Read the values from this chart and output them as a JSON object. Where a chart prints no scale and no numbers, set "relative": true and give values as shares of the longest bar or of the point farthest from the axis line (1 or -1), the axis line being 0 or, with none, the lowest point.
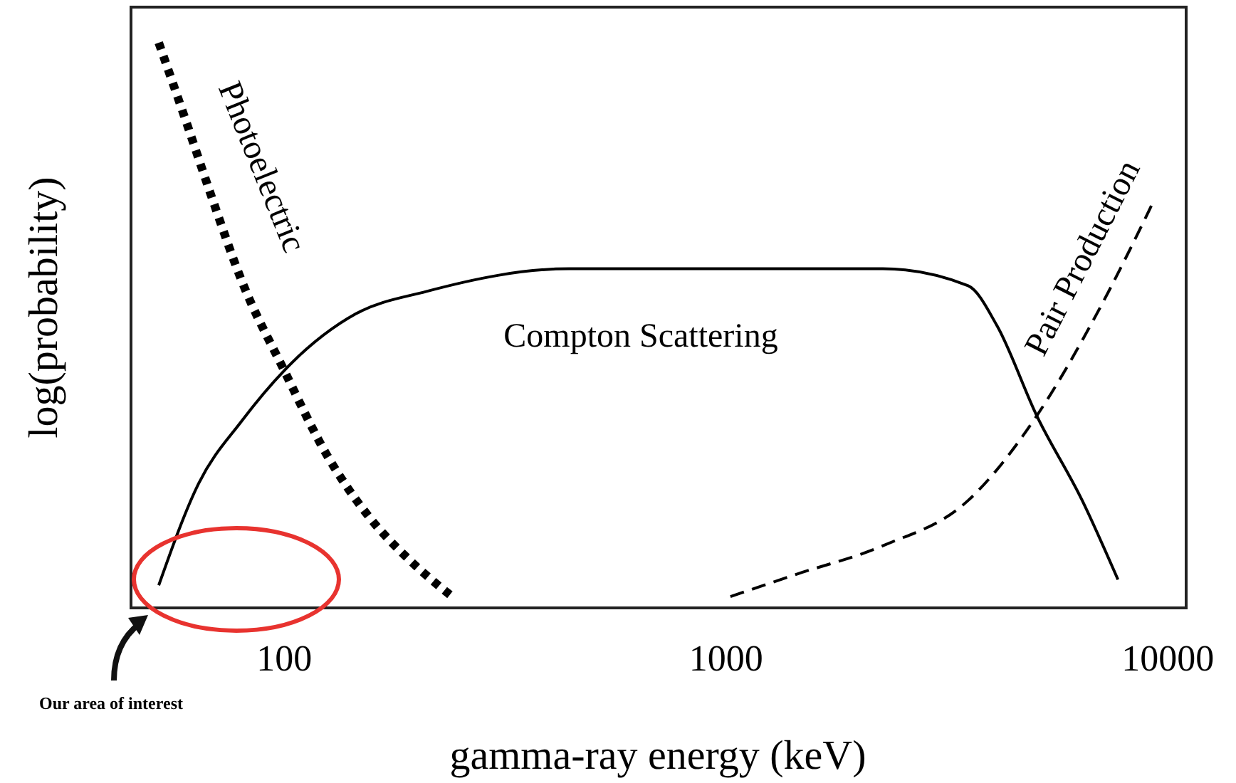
{
  "chart_data": {
    "type": "line",
    "xlabel": "gamma-ray energy (keV)",
    "ylabel": "log(probability)",
    "log": "x",
    "relative": true,
    "xlim": [
      45,
      11000
    ],
    "xticks": [
      100,
      1000,
      10000
    ],
    "grid": false,
    "marker": "none",
    "series": [
      {
        "name": "Photoelectric",
        "color": "#000000",
        "line_style": "dotted",
        "x": [
          52,
          59.4,
          69,
          80,
          100,
          125,
          156,
          195,
          240
        ],
        "values": [
          1,
          0.87,
          0.72,
          0.58,
          0.42,
          0.27,
          0.16,
          0.08,
          0.02
        ]
      },
      {
        "name": "Compton Scattering",
        "color": "#000000",
        "line_style": "solid",
        "x": [
          52,
          64,
          80,
          100,
          145,
          210,
          441,
          1000,
          2265,
          3530,
          4100,
          5050,
          6400,
          7710
        ],
        "values": [
          0.04,
          0.22,
          0.33,
          0.42,
          0.52,
          0.56,
          0.6,
          0.6,
          0.6,
          0.57,
          0.5,
          0.34,
          0.19,
          0.05
        ]
      },
      {
        "name": "Pair Production",
        "color": "#000000",
        "line_style": "dashed",
        "x": [
          1023,
          1450,
          2265,
          3530,
          5050,
          6900,
          9290
        ],
        "values": [
          0.02,
          0.06,
          0.11,
          0.19,
          0.34,
          0.52,
          0.72
        ]
      }
    ],
    "annotations": [
      "Our area of interest"
    ]
  }
}
